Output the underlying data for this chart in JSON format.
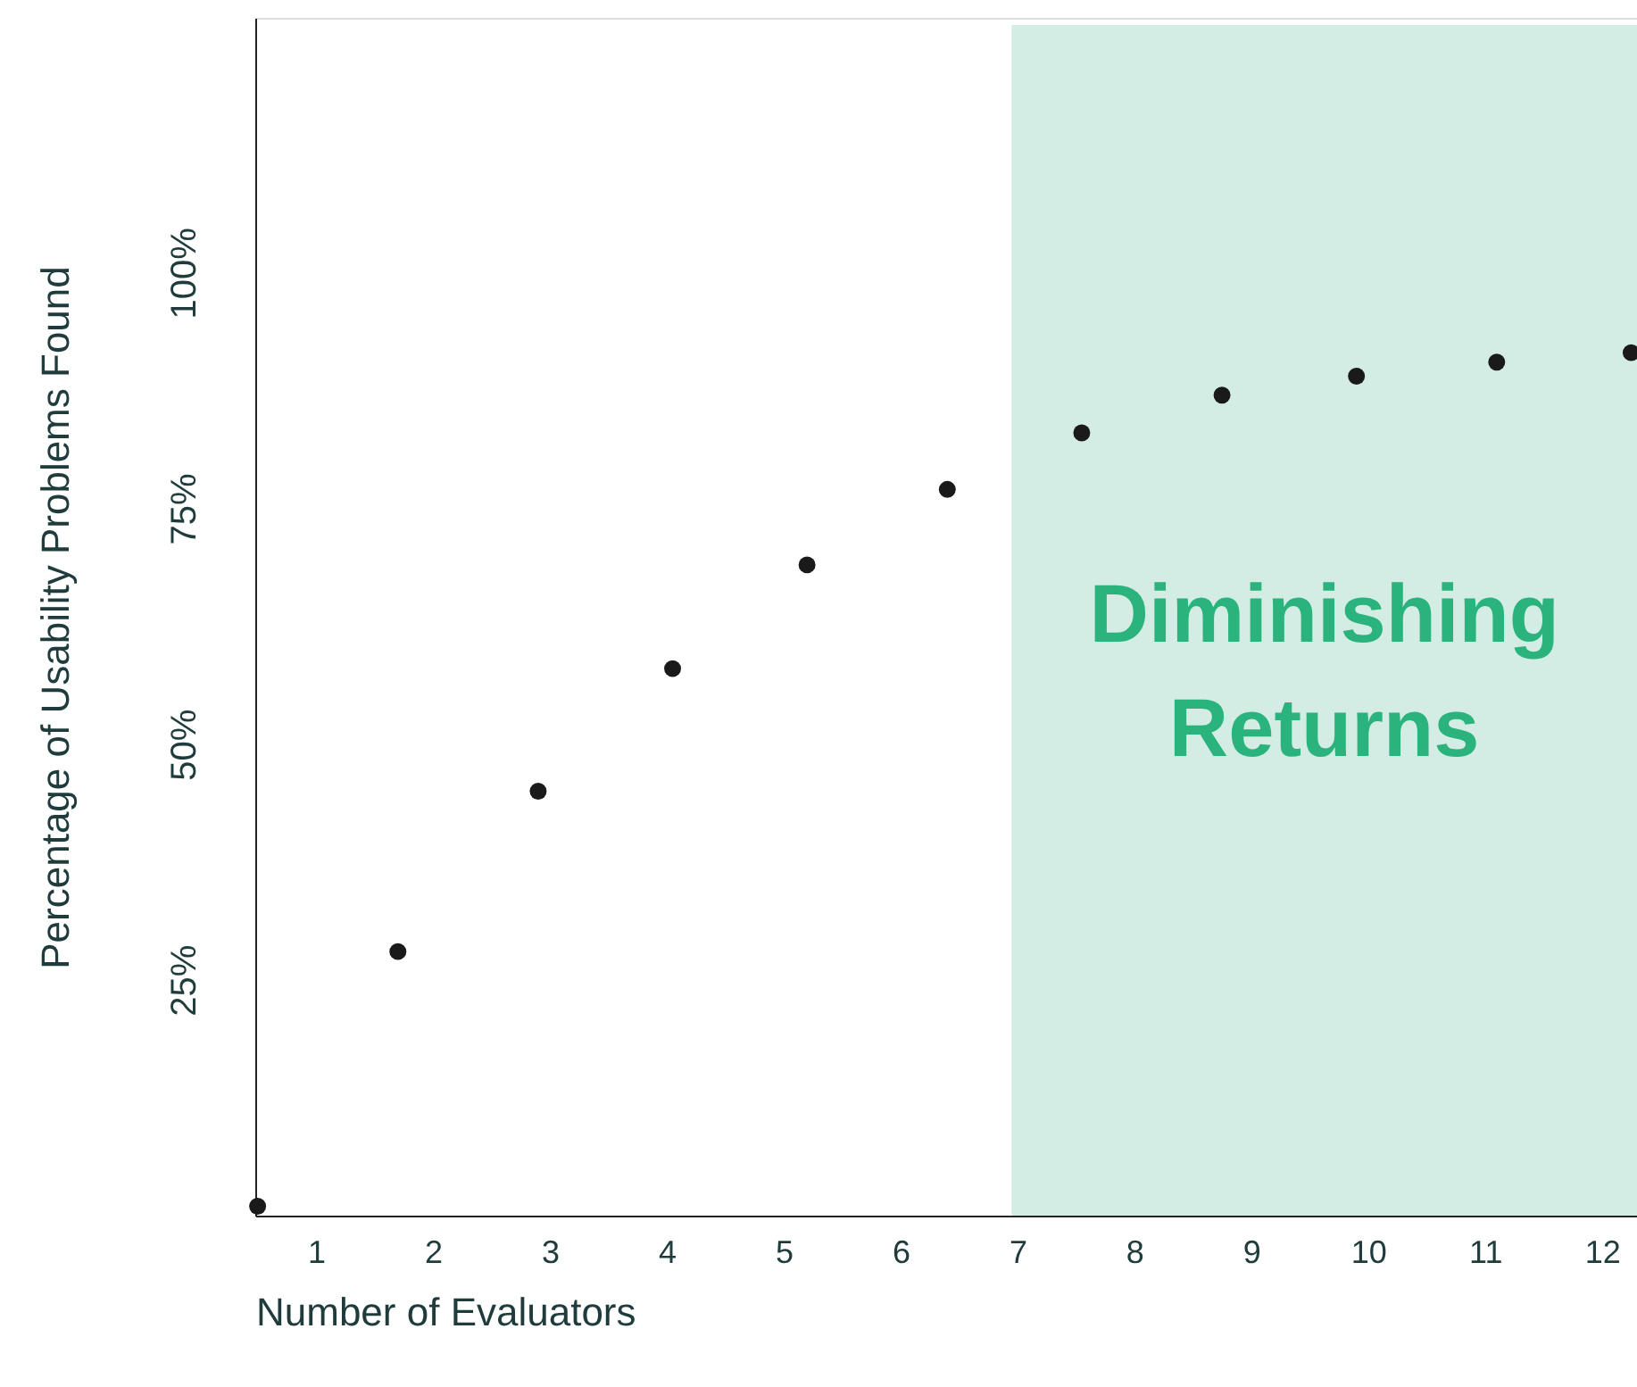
{
  "chart_data": {
    "type": "scatter",
    "xlabel": "Number of Evaluators",
    "ylabel": "Percentage of Usability Problems Found",
    "x": [
      0.5,
      1.7,
      2.9,
      4.05,
      5.2,
      6.4,
      7.55,
      8.75,
      9.9,
      11.1,
      12.25
    ],
    "series": [
      {
        "color": "#1a1a1a",
        "values": [
          1,
          28,
          45,
          58,
          69,
          77,
          83,
          87,
          89,
          90.5,
          91.5
        ]
      }
    ],
    "marker": "circle",
    "xlim": [
      0.48,
      12.3
    ],
    "xticks": [
      1,
      2,
      3,
      4,
      5,
      6,
      7,
      8,
      9,
      10,
      11,
      12
    ],
    "ylim": [
      0,
      127
    ],
    "yticks": [
      {
        "value": 25,
        "label": "25%"
      },
      {
        "value": 50,
        "label": "50%"
      },
      {
        "value": 75,
        "label": "75%"
      },
      {
        "value": 100,
        "label": "100%"
      }
    ],
    "bands": [
      {
        "axis": "x",
        "from": 6.95,
        "to": 12.3,
        "label": "Diminishing Returns",
        "color": "#d4ede4"
      }
    ],
    "grid": false
  }
}
